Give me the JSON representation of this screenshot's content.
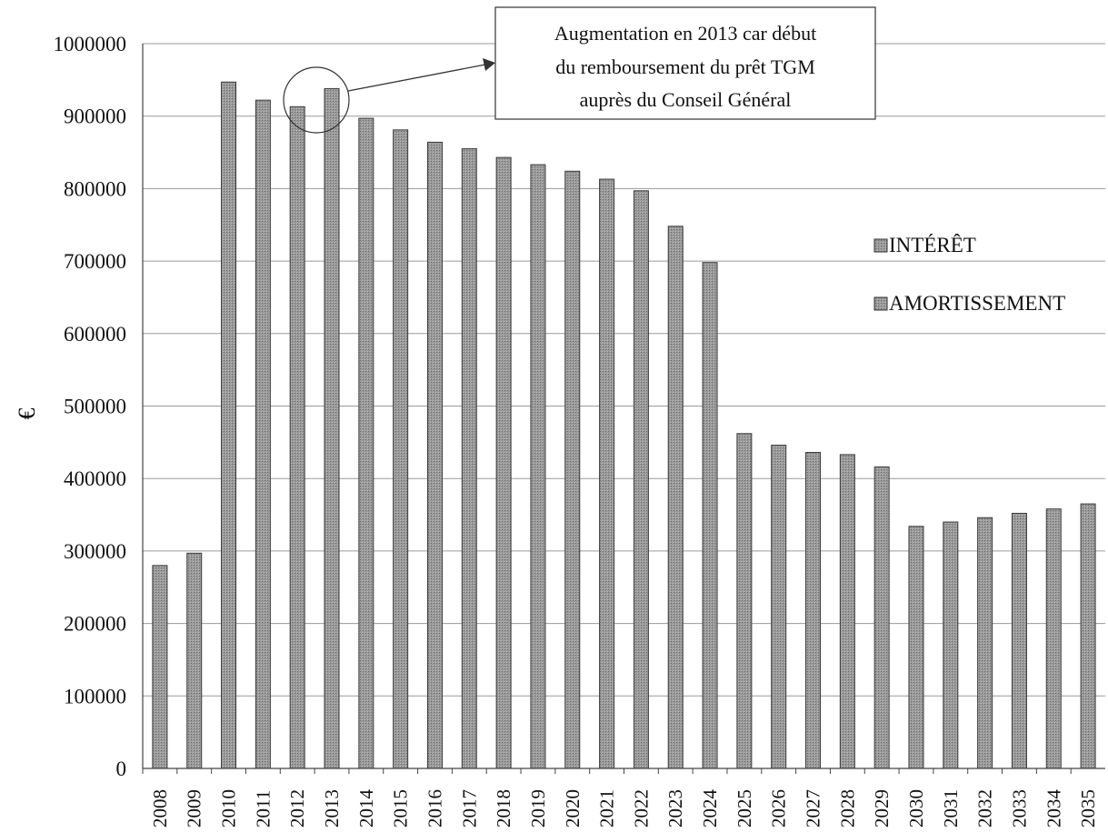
{
  "chart_data": {
    "type": "bar",
    "stacked": true,
    "categories": [
      "2008",
      "2009",
      "2010",
      "2011",
      "2012",
      "2013",
      "2014",
      "2015",
      "2016",
      "2017",
      "2018",
      "2019",
      "2020",
      "2021",
      "2022",
      "2023",
      "2024",
      "2025",
      "2026",
      "2027",
      "2028",
      "2029",
      "2030",
      "2031",
      "2032",
      "2033",
      "2034",
      "2035"
    ],
    "values": [
      280000,
      297000,
      947000,
      922000,
      913000,
      938000,
      897000,
      881000,
      864000,
      855000,
      843000,
      833000,
      824000,
      813000,
      797000,
      748000,
      698000,
      462000,
      446000,
      436000,
      433000,
      416000,
      334000,
      340000,
      346000,
      352000,
      358000,
      365000
    ],
    "series": [
      {
        "name": "INTÉRÊT"
      },
      {
        "name": "AMORTISSEMENT"
      }
    ],
    "ylabel": "€",
    "ylim": [
      0,
      1000000
    ],
    "yticks": [
      "0",
      "100000",
      "200000",
      "300000",
      "400000",
      "500000",
      "600000",
      "700000",
      "800000",
      "900000",
      "1000000"
    ],
    "grid": true,
    "legend_position": "right",
    "annotation": {
      "lines": [
        "Augmentation en 2013 car début",
        "du remboursement du prêt TGM",
        "auprès du Conseil Général"
      ],
      "target_category": "2013"
    }
  },
  "colors": {
    "bar": "#8c8c8c",
    "bar_edge": "#3a3a3a",
    "grid": "#9a9a9a",
    "text": "#111111"
  }
}
